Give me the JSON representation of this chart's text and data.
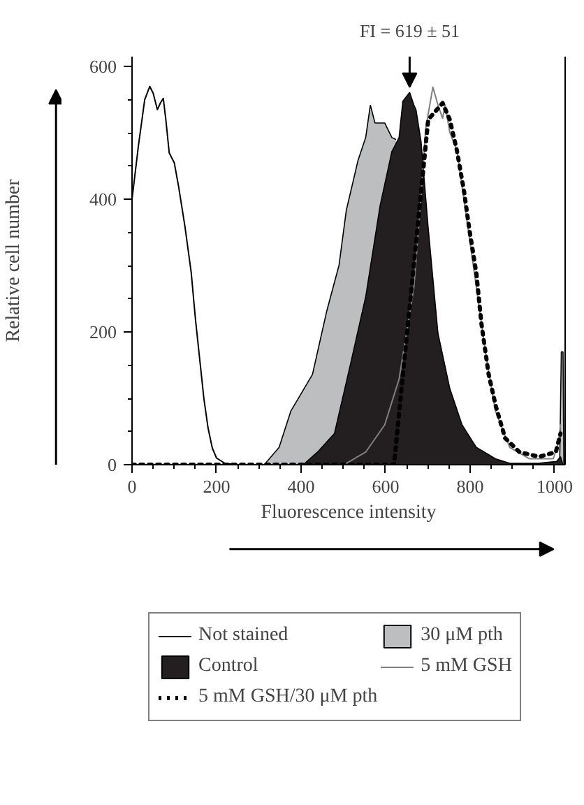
{
  "chart_data": {
    "type": "line",
    "xlabel": "Fluorescence intensity",
    "ylabel": "Relative cell number",
    "xlim": [
      0,
      1025
    ],
    "ylim": [
      0,
      615
    ],
    "xticks": [
      0,
      200,
      400,
      600,
      800,
      1000
    ],
    "yticks": [
      0,
      200,
      400,
      600
    ],
    "legend": "bottom",
    "grid": false,
    "annotations": [
      {
        "text": "FI = 619 ± 51",
        "x": 657,
        "y": 561
      }
    ],
    "series": [
      {
        "name": "Not stained",
        "color": "#000000",
        "line_style": "solid",
        "x": [
          0,
          15,
          30,
          42,
          50,
          60,
          67,
          74,
          80,
          88,
          100,
          110,
          125,
          140,
          150,
          160,
          170,
          180,
          190,
          200,
          220,
          250
        ],
        "values": [
          400,
          480,
          550,
          570,
          560,
          535,
          545,
          552,
          520,
          470,
          455,
          420,
          360,
          290,
          220,
          160,
          100,
          55,
          25,
          10,
          2,
          0
        ]
      },
      {
        "name": "30 μM pth",
        "type": "area",
        "color": "#bcbec0",
        "x": [
          313,
          348,
          376,
          427,
          461,
          490,
          507,
          535,
          553,
          564,
          575,
          598,
          615,
          625,
          1005,
          1012,
          1016,
          1020,
          1022
        ],
        "values": [
          0,
          26,
          81,
          136,
          232,
          301,
          383,
          459,
          493,
          542,
          515,
          515,
          493,
          490,
          null,
          0,
          170,
          170,
          0
        ]
      },
      {
        "name": "Control",
        "type": "area",
        "color": "#231f20",
        "x": [
          405,
          439,
          479,
          519,
          553,
          587,
          615,
          632,
          641,
          657,
          667,
          672,
          684,
          701,
          724,
          752,
          781,
          815,
          860,
          894,
          960,
          1005,
          1014,
          1020
        ],
        "values": [
          0,
          19,
          47,
          157,
          253,
          390,
          472,
          493,
          548,
          561,
          542,
          535,
          487,
          356,
          198,
          115,
          60,
          26,
          9,
          2,
          2,
          5,
          12,
          0
        ]
      },
      {
        "name": "5 mM GSH",
        "color": "#808080",
        "line_style": "solid",
        "x": [
          507,
          553,
          598,
          632,
          667,
          684,
          695,
          712,
          724,
          735,
          741,
          752,
          769,
          792,
          815,
          838,
          860,
          894,
          940,
          997,
          1009,
          1014
        ],
        "values": [
          2,
          19,
          60,
          129,
          267,
          404,
          507,
          569,
          542,
          522,
          542,
          501,
          473,
          370,
          267,
          164,
          81,
          26,
          9,
          9,
          33,
          60
        ]
      },
      {
        "name": "5 mM GSH/30 μM pth",
        "color": "#000000",
        "line_style": "dotted",
        "x": [
          0,
          300,
          620,
          701,
          735,
          752,
          769,
          786,
          798,
          815,
          827,
          844,
          861,
          883,
          917,
          963,
          1003,
          1014
        ],
        "values": [
          0,
          0,
          0,
          520,
          545,
          520,
          473,
          411,
          356,
          288,
          212,
          136,
          88,
          40,
          19,
          12,
          19,
          47
        ]
      }
    ]
  }
}
